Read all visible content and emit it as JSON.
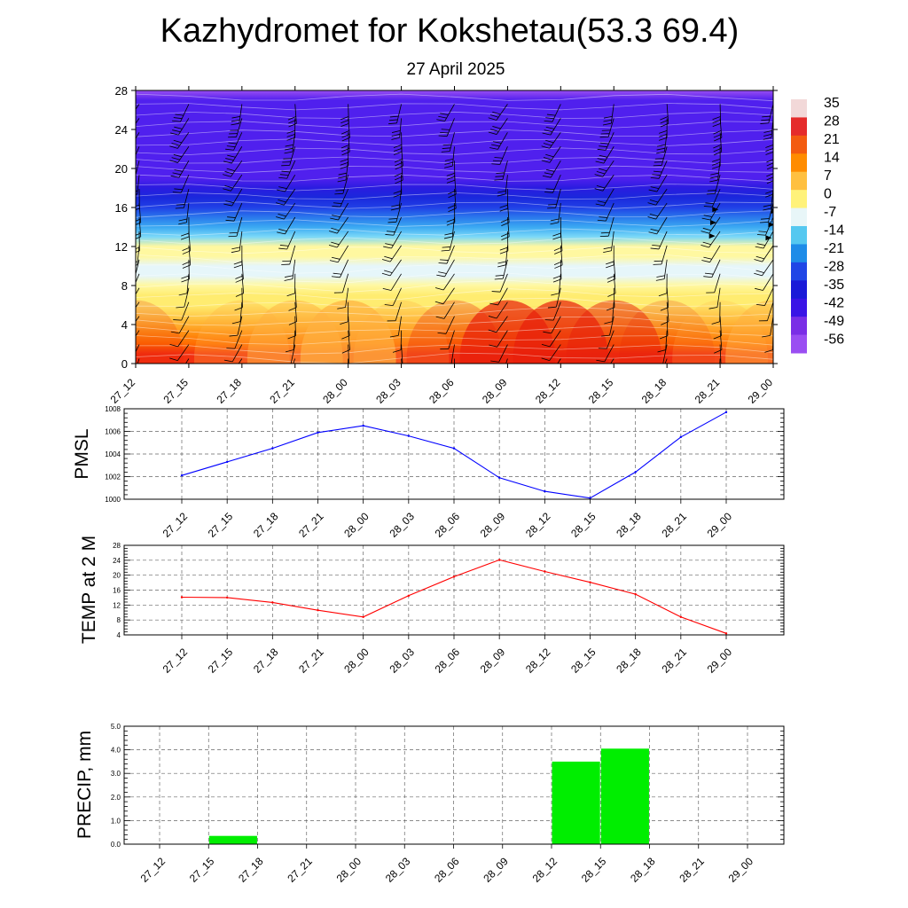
{
  "title": "Kazhydromet for Kokshetau(53.3 69.4)",
  "subtitle": "27 April 2025",
  "time_labels": [
    "27_12",
    "27_15",
    "27_18",
    "27_21",
    "28_00",
    "28_03",
    "28_06",
    "28_09",
    "28_12",
    "28_15",
    "28_18",
    "28_21",
    "29_00"
  ],
  "chart_data": [
    {
      "type": "heatmap",
      "ylim": [
        0,
        28
      ],
      "yticks": [
        "0",
        "4",
        "8",
        "12",
        "16",
        "20",
        "24",
        "28"
      ],
      "colorbar": {
        "labels": [
          "35",
          "28",
          "21",
          "14",
          "7",
          "0",
          "-7",
          "-14",
          "-21",
          "-28",
          "-35",
          "-42",
          "-49",
          "-56"
        ],
        "colors": [
          "#f2d8d8",
          "#e52b2b",
          "#f35b10",
          "#ff8c00",
          "#ffc040",
          "#fff27a",
          "#e8f6f8",
          "#55c8f0",
          "#1e8ce8",
          "#2046e6",
          "#1a1ad8",
          "#3a14e6",
          "#7a2ee6",
          "#9a4ef2"
        ]
      },
      "profile": [
        [
          0,
          12
        ],
        [
          1,
          9
        ],
        [
          2,
          6
        ],
        [
          3,
          3
        ],
        [
          4,
          -1
        ],
        [
          5,
          -5
        ],
        [
          6,
          -8
        ],
        [
          7,
          -10
        ],
        [
          8,
          -12
        ],
        [
          9,
          -14
        ],
        [
          10,
          -14
        ],
        [
          11,
          -13
        ],
        [
          12,
          -13
        ],
        [
          13,
          -24
        ],
        [
          14,
          -30
        ],
        [
          15,
          -36
        ],
        [
          16,
          -40
        ],
        [
          17,
          -46
        ],
        [
          18,
          -51
        ],
        [
          19,
          -55
        ],
        [
          20,
          -57
        ],
        [
          21,
          -57
        ],
        [
          22,
          -57
        ],
        [
          23,
          -56
        ],
        [
          24,
          -56
        ],
        [
          25,
          -57
        ],
        [
          26,
          -58
        ],
        [
          27,
          -59
        ],
        [
          28,
          -60
        ]
      ],
      "surface_offset": [
        2,
        0,
        -3,
        -5,
        -7,
        -3,
        3,
        7,
        7,
        5,
        2,
        -2,
        -5
      ],
      "grid": true
    },
    {
      "type": "line",
      "ylabel": "PMSL",
      "ylim": [
        1000,
        1008
      ],
      "yticks": [
        "1000",
        "1002",
        "1004",
        "1006",
        "1008"
      ],
      "series": [
        {
          "color": "#0000ff",
          "values": [
            1002.1,
            1003.3,
            1004.5,
            1005.9,
            1006.5,
            1005.6,
            1004.5,
            1001.9,
            1000.7,
            1000.1,
            1002.4,
            1005.5,
            1007.7
          ]
        }
      ],
      "grid": true
    },
    {
      "type": "line",
      "ylabel": "TEMP at 2 M",
      "ylim": [
        4,
        28
      ],
      "yticks": [
        "4",
        "8",
        "12",
        "16",
        "20",
        "24",
        "28"
      ],
      "series": [
        {
          "color": "#ff0000",
          "values": [
            14.1,
            14.0,
            12.7,
            10.6,
            8.8,
            14.5,
            19.6,
            24.1,
            21.0,
            18.1,
            14.9,
            8.8,
            4.4
          ]
        }
      ],
      "grid": true
    },
    {
      "type": "bar",
      "ylabel": "PRECIP, mm",
      "ylim": [
        0,
        5
      ],
      "yticks": [
        "0.0",
        "1.0",
        "2.0",
        "3.0",
        "4.0",
        "5.0"
      ],
      "color": "#00ee00",
      "values": [
        0,
        0.35,
        0,
        0,
        0,
        0,
        0,
        0,
        3.5,
        4.05,
        0,
        0,
        0
      ],
      "grid": true
    }
  ]
}
